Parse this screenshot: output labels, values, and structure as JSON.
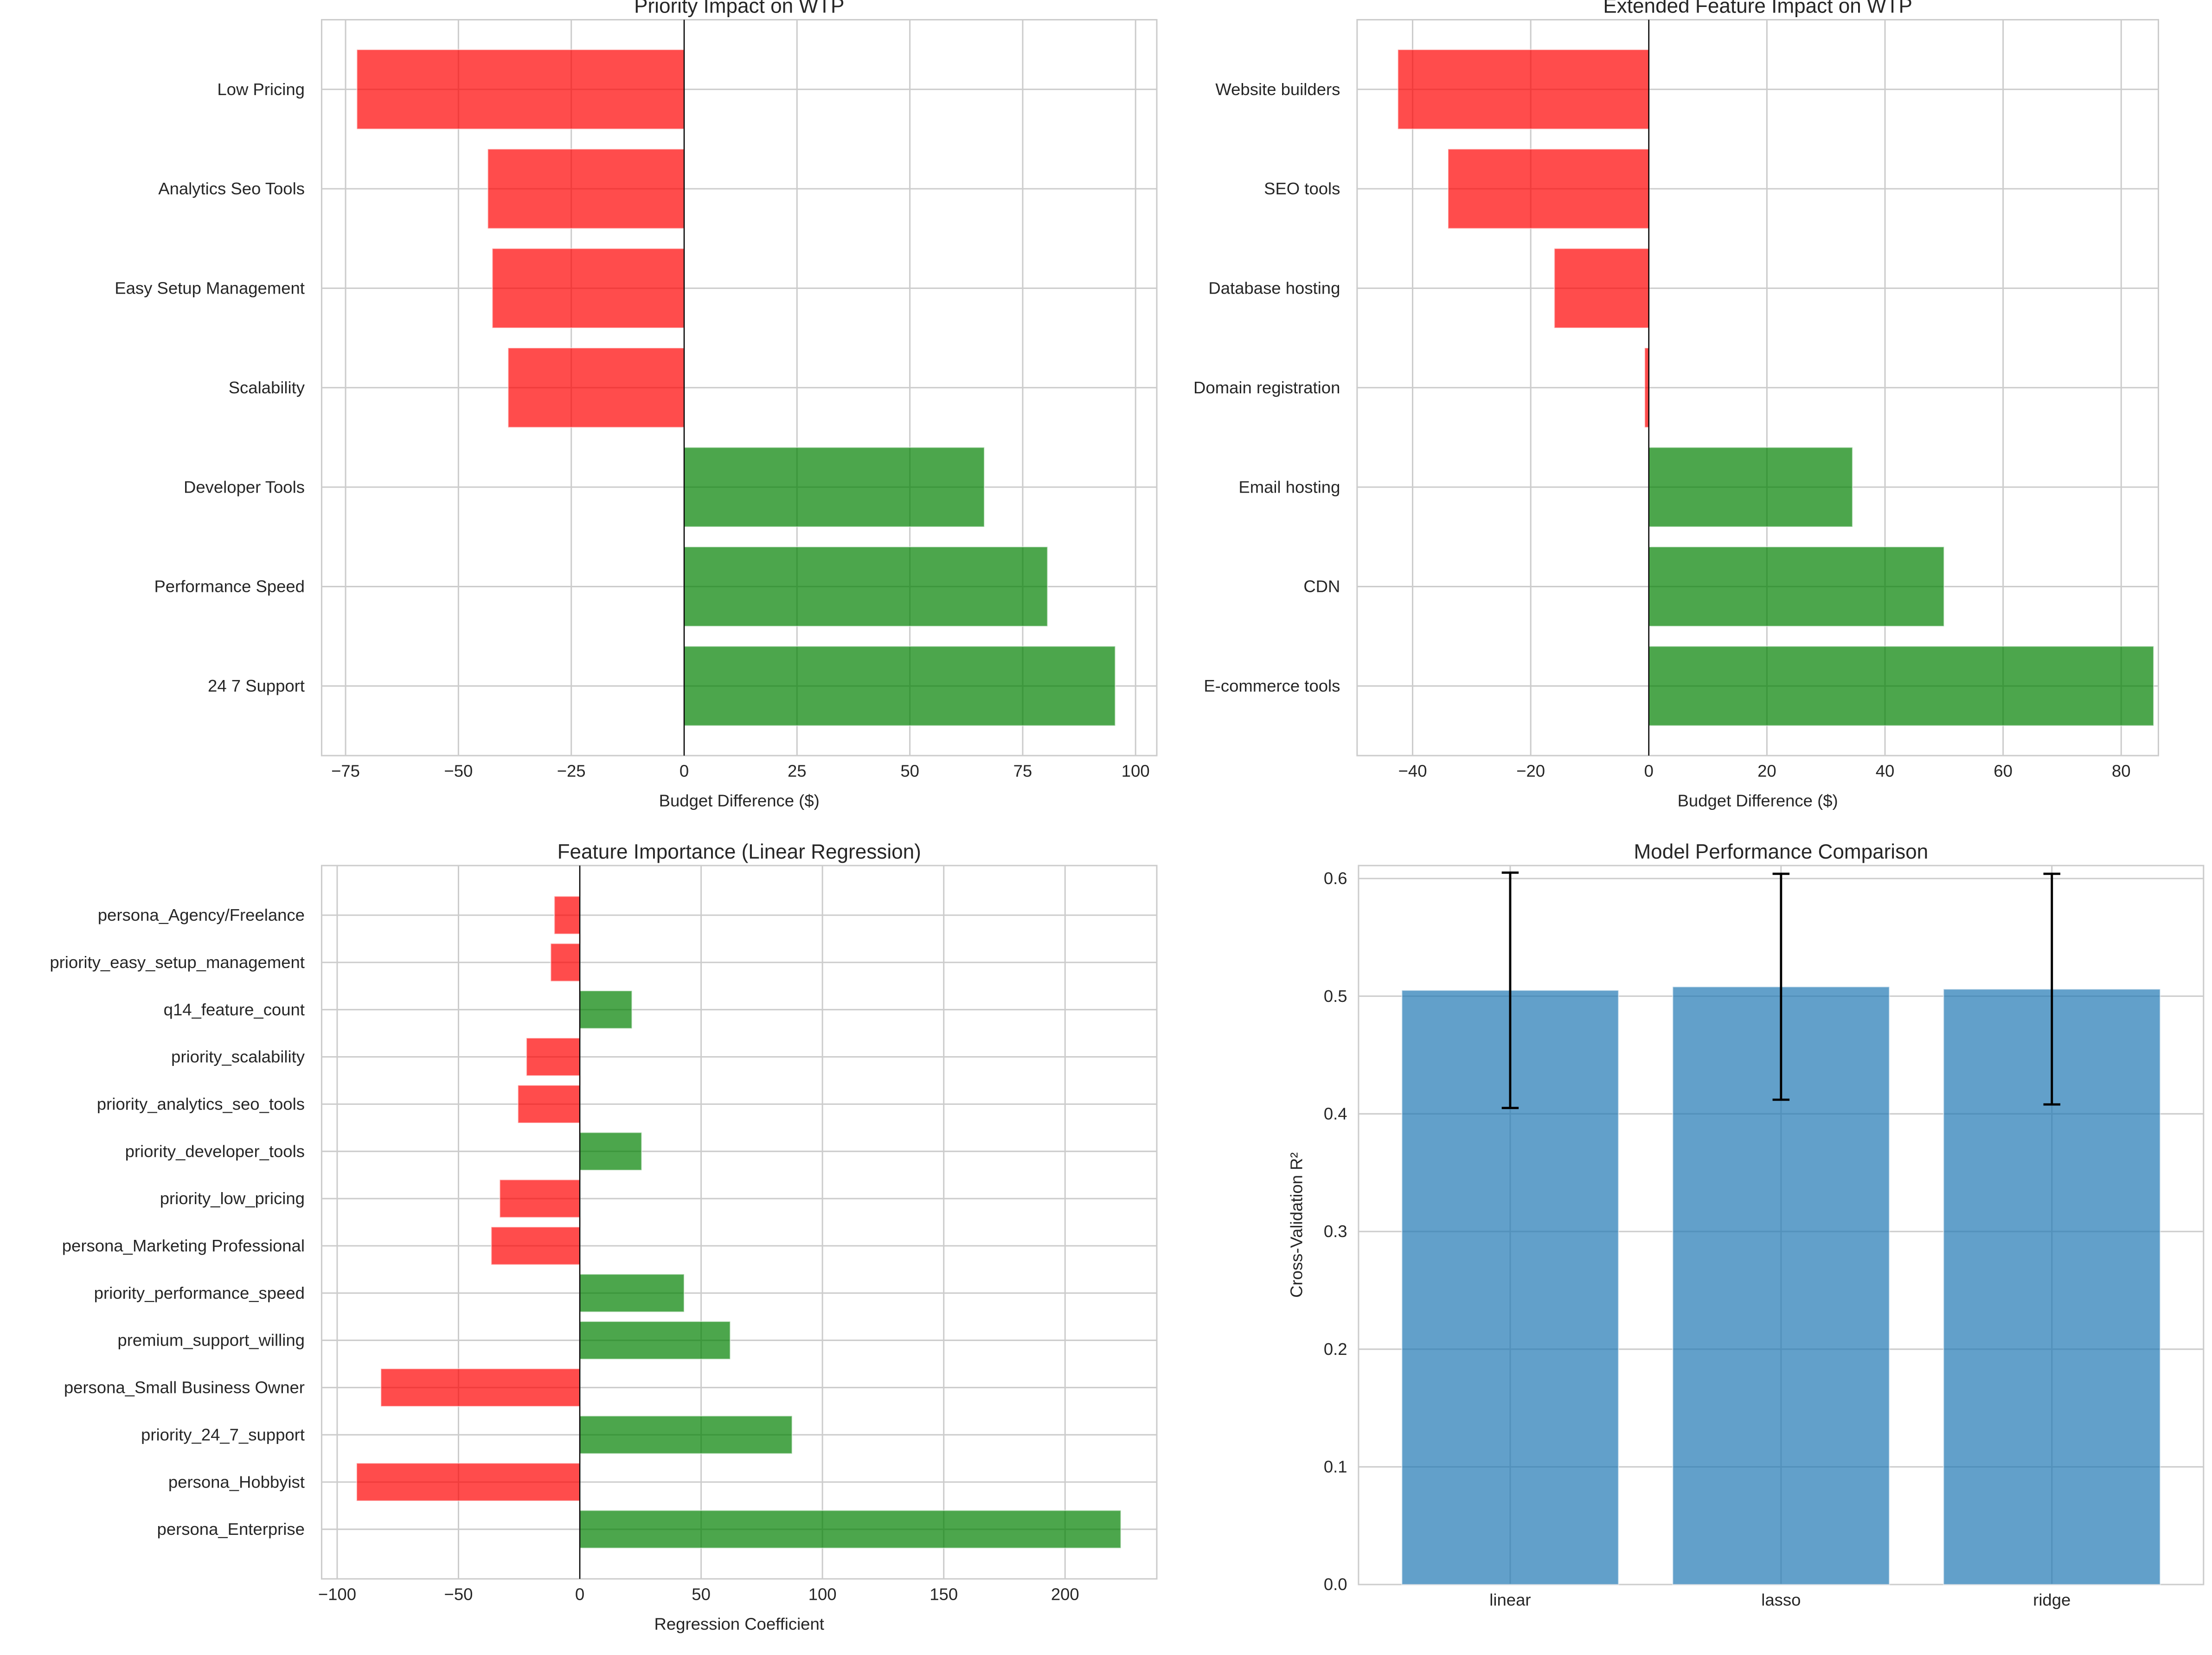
{
  "colors": {
    "negative": "#ff0000",
    "positive": "#008000",
    "bar": "#1f77b4",
    "grid": "#cccccc",
    "zero_line": "#000000"
  },
  "chart_data": [
    {
      "type": "bar",
      "orientation": "horizontal",
      "title": "Priority Impact on WTP",
      "xlabel": "Budget Difference ($)",
      "ylabel": "",
      "categories": [
        "Low Pricing",
        "Analytics Seo Tools",
        "Easy Setup Management",
        "Scalability",
        "Developer Tools",
        "Performance Speed",
        "24 7 Support"
      ],
      "values": [
        -72.5,
        -43.5,
        -42.5,
        -39,
        66.5,
        80.5,
        95.5
      ],
      "xlim": [
        -80.3,
        104.7
      ],
      "xticks": [
        -75,
        -50,
        -25,
        0,
        25,
        50,
        75,
        100
      ],
      "xtick_labels": [
        "−75",
        "−50",
        "−25",
        "0",
        "25",
        "50",
        "75",
        "100"
      ],
      "grid": true,
      "color_rule": "red if negative, green if positive"
    },
    {
      "type": "bar",
      "orientation": "horizontal",
      "title": "Extended Feature Impact on WTP",
      "xlabel": "Budget Difference ($)",
      "ylabel": "",
      "categories": [
        "Website builders",
        "SEO tools",
        "Database hosting",
        "Domain registration",
        "Email hosting",
        "CDN",
        "E-commerce tools"
      ],
      "values": [
        -42.5,
        -34,
        -16,
        -0.7,
        34.5,
        50,
        85.5
      ],
      "xlim": [
        -49.4,
        86.3
      ],
      "xticks": [
        -40,
        -20,
        0,
        20,
        40,
        60,
        80
      ],
      "xtick_labels": [
        "−40",
        "−20",
        "0",
        "20",
        "40",
        "60",
        "80"
      ],
      "grid": true,
      "color_rule": "red if negative, green if positive"
    },
    {
      "type": "bar",
      "orientation": "horizontal",
      "title": "Feature Importance (Linear Regression)",
      "xlabel": "Regression Coefficient",
      "ylabel": "",
      "categories": [
        "persona_Agency/Freelance",
        "priority_easy_setup_management",
        "q14_feature_count",
        "priority_scalability",
        "priority_analytics_seo_tools",
        "priority_developer_tools",
        "priority_low_pricing",
        "persona_Marketing Professional",
        "priority_performance_speed",
        "premium_support_willing",
        "persona_Small Business Owner",
        "priority_24_7_support",
        "persona_Hobbyist",
        "persona_Enterprise"
      ],
      "values": [
        -10.5,
        -12,
        21.5,
        -22,
        -25.5,
        25.5,
        -33,
        -36.5,
        43,
        62,
        -82,
        87.5,
        -92,
        223
      ],
      "xlim": [
        -106.4,
        237.8
      ],
      "xticks": [
        -100,
        -50,
        0,
        50,
        100,
        150,
        200
      ],
      "xtick_labels": [
        "−100",
        "−50",
        "0",
        "50",
        "100",
        "150",
        "200"
      ],
      "grid": true,
      "color_rule": "red if negative, green if positive"
    },
    {
      "type": "bar",
      "orientation": "vertical",
      "title": "Model Performance Comparison",
      "xlabel": "",
      "ylabel": "Cross-Validation R²",
      "categories": [
        "linear",
        "lasso",
        "ridge"
      ],
      "values": [
        0.505,
        0.508,
        0.506
      ],
      "errors": [
        0.1,
        0.096,
        0.098
      ],
      "ylim": [
        0,
        0.611
      ],
      "yticks": [
        0,
        0.1,
        0.2,
        0.3,
        0.4,
        0.5,
        0.6
      ],
      "ytick_labels": [
        "0.0",
        "0.1",
        "0.2",
        "0.3",
        "0.4",
        "0.5",
        "0.6"
      ],
      "grid": true
    }
  ]
}
